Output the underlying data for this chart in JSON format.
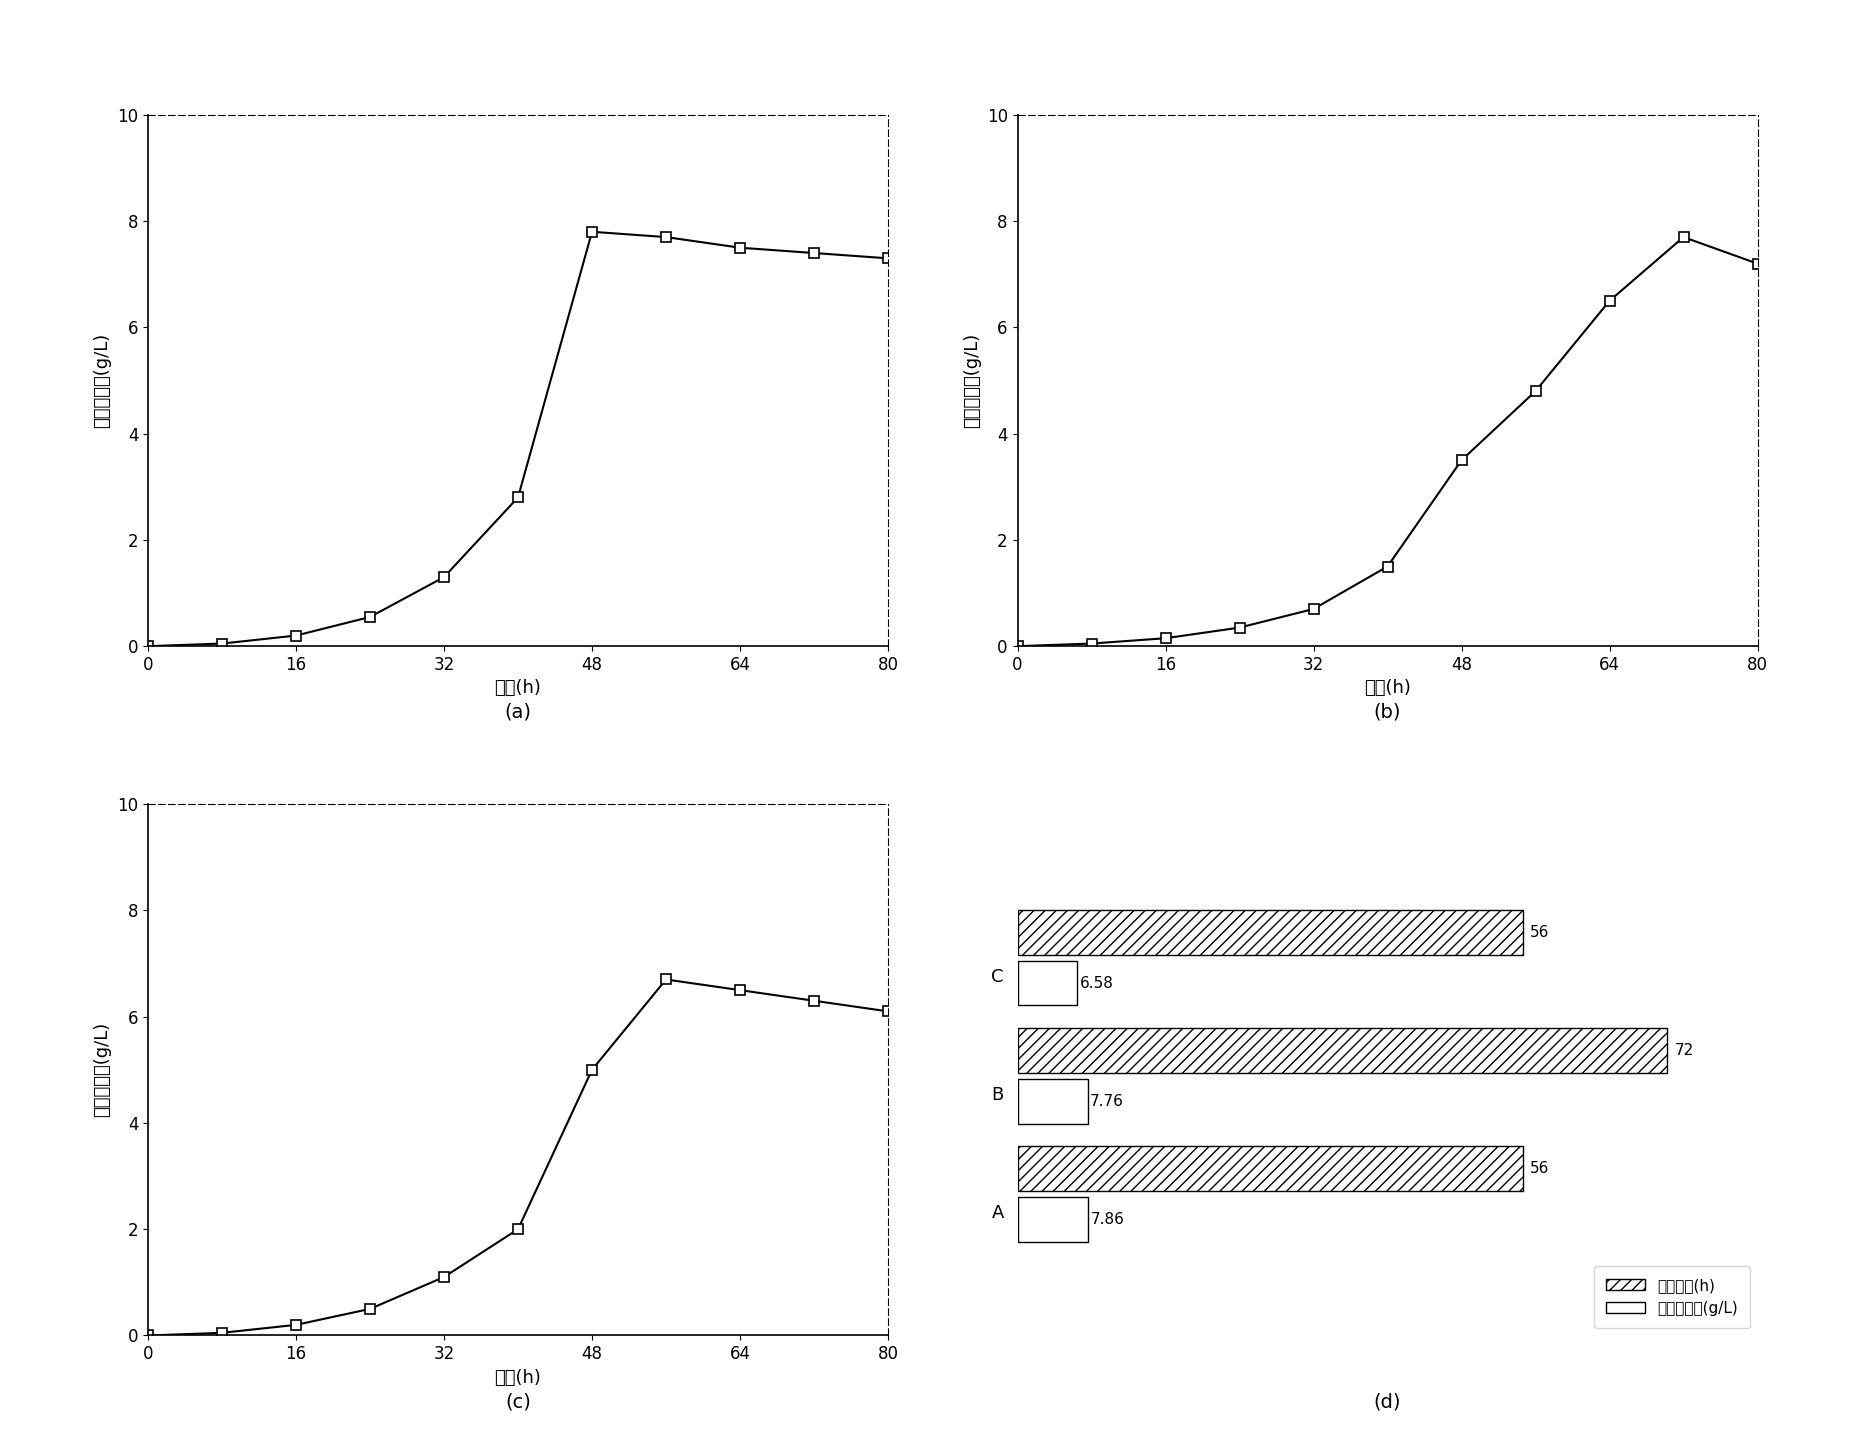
{
  "panel_a": {
    "x": [
      0,
      8,
      16,
      24,
      32,
      40,
      48,
      56,
      64,
      72,
      80
    ],
    "y": [
      0,
      0.05,
      0.2,
      0.55,
      1.3,
      2.8,
      7.8,
      7.7,
      7.5,
      7.4,
      7.3
    ],
    "xlabel": "时间(h)",
    "ylabel": "絮凝剂产量(g/L)",
    "xlim": [
      0,
      80
    ],
    "ylim": [
      0,
      10
    ],
    "xticks": [
      0,
      16,
      32,
      48,
      64,
      80
    ],
    "yticks": [
      0,
      2,
      4,
      6,
      8,
      10
    ],
    "label": "(a)"
  },
  "panel_b": {
    "x": [
      0,
      8,
      16,
      24,
      32,
      40,
      48,
      56,
      64,
      72,
      80
    ],
    "y": [
      0,
      0.05,
      0.15,
      0.35,
      0.7,
      1.5,
      3.5,
      4.8,
      6.5,
      7.7,
      7.2
    ],
    "xlabel": "时间(h)",
    "ylabel": "絮凝剂产量(g/L)",
    "xlim": [
      0,
      80
    ],
    "ylim": [
      0,
      10
    ],
    "xticks": [
      0,
      16,
      32,
      48,
      64,
      80
    ],
    "yticks": [
      0,
      2,
      4,
      6,
      8,
      10
    ],
    "label": "(b)"
  },
  "panel_c": {
    "x": [
      0,
      8,
      16,
      24,
      32,
      40,
      48,
      56,
      64,
      72,
      80
    ],
    "y": [
      0,
      0.05,
      0.2,
      0.5,
      1.1,
      2.0,
      5.0,
      6.7,
      6.5,
      6.3,
      6.1
    ],
    "xlabel": "时间(h)",
    "ylabel": "絮凝剂产量(g/L)",
    "xlim": [
      0,
      80
    ],
    "ylim": [
      0,
      10
    ],
    "xticks": [
      0,
      16,
      32,
      48,
      64,
      80
    ],
    "yticks": [
      0,
      2,
      4,
      6,
      8,
      10
    ],
    "label": "(c)"
  },
  "panel_d": {
    "categories": [
      "A",
      "B",
      "C"
    ],
    "growth_period": [
      56,
      72,
      56
    ],
    "flocculant_yield": [
      7.86,
      7.76,
      6.58
    ],
    "label": "(d)",
    "legend_hatch": "生长周期(h)",
    "legend_white": "絮凝剂产量(g/L)"
  }
}
